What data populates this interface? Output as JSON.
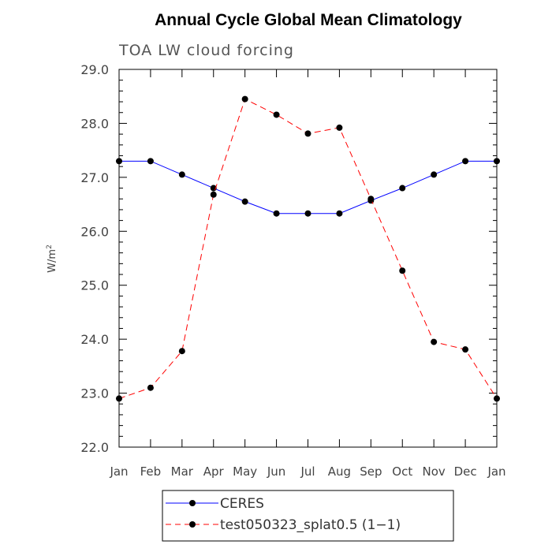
{
  "chart_data": {
    "type": "line",
    "title": "Annual Cycle Global Mean Climatology",
    "subtitle": "TOA LW cloud forcing",
    "xlabel": "",
    "ylabel": "W/m",
    "ylabel_sup": "2",
    "categories": [
      "Jan",
      "Feb",
      "Mar",
      "Apr",
      "May",
      "Jun",
      "Jul",
      "Aug",
      "Sep",
      "Oct",
      "Nov",
      "Dec",
      "Jan"
    ],
    "ylim": [
      22.0,
      29.0
    ],
    "yticks": [
      "22.0",
      "23.0",
      "24.0",
      "25.0",
      "26.0",
      "27.0",
      "28.0",
      "29.0"
    ],
    "grid": false,
    "legend_position": "bottom",
    "series": [
      {
        "name": "CERES",
        "color": "#0000ff",
        "dash": "solid",
        "values": [
          27.3,
          27.3,
          27.05,
          26.8,
          26.55,
          26.33,
          26.33,
          26.33,
          26.57,
          26.8,
          27.05,
          27.3,
          27.3
        ]
      },
      {
        "name": "test050323_splat0.5 (1−1)",
        "color": "#ff0000",
        "dash": "dashed",
        "values": [
          22.9,
          23.1,
          23.78,
          26.68,
          28.45,
          28.16,
          27.81,
          27.92,
          26.6,
          25.27,
          23.95,
          23.81,
          22.9
        ]
      }
    ]
  }
}
